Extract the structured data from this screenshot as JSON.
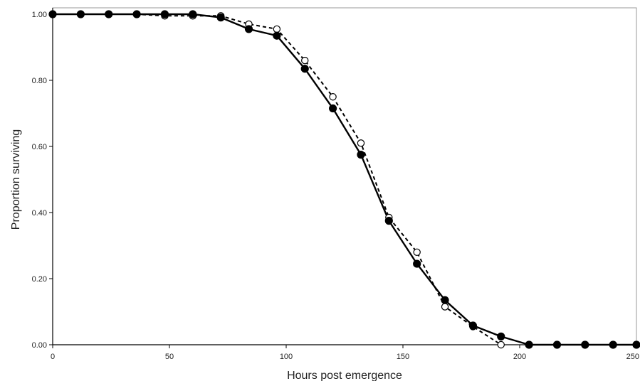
{
  "chart_data": {
    "type": "line",
    "xlabel": "Hours post emergence",
    "ylabel": "Proportion surviving",
    "xlim": [
      0,
      250
    ],
    "ylim": [
      0,
      1
    ],
    "x_ticks": [
      0,
      50,
      100,
      150,
      200,
      250
    ],
    "x_tick_labels": [
      "0",
      "50",
      "100",
      "150",
      "200",
      "250"
    ],
    "y_ticks": [
      0,
      0.2,
      0.4,
      0.6,
      0.8,
      1.0
    ],
    "y_tick_labels": [
      "0.00",
      "0.20",
      "0.40",
      "0.60",
      "0.80",
      "1.00"
    ],
    "grid": false,
    "series": [
      {
        "line_style": "dashed",
        "marker": "open-circle",
        "color": "#000000",
        "x": [
          0,
          12,
          24,
          36,
          48,
          60,
          72,
          84,
          96,
          108,
          120,
          132,
          144,
          156,
          168,
          180,
          192
        ],
        "y": [
          1.0,
          1.0,
          1.0,
          1.0,
          0.995,
          0.995,
          0.995,
          0.97,
          0.955,
          0.86,
          0.75,
          0.61,
          0.385,
          0.28,
          0.115,
          0.055,
          0.0
        ]
      },
      {
        "line_style": "solid",
        "marker": "filled-circle",
        "color": "#000000",
        "x": [
          0,
          12,
          24,
          36,
          48,
          60,
          72,
          84,
          96,
          108,
          120,
          132,
          144,
          156,
          168,
          180,
          192,
          204,
          216,
          228,
          240,
          250
        ],
        "y": [
          1.0,
          1.0,
          1.0,
          1.0,
          1.0,
          1.0,
          0.99,
          0.955,
          0.935,
          0.835,
          0.715,
          0.575,
          0.375,
          0.245,
          0.135,
          0.058,
          0.025,
          0.0,
          0.0,
          0.0,
          0.0,
          0.0
        ]
      }
    ]
  }
}
